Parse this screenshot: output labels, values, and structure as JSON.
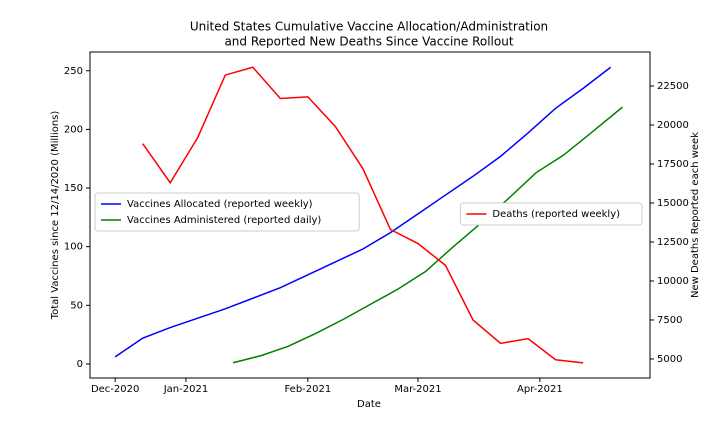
{
  "chart_data": {
    "type": "line",
    "title": [
      "United States Cumulative Vaccine Allocation/Administration",
      "and Reported New Deaths Since Vaccine Rollout"
    ],
    "xlabel": "Date",
    "ylabel": "Total Vaccines since 12/14/2020 (Millions)",
    "y2label": "New Deaths Reported each week",
    "xlim": [
      -6.4,
      136
    ],
    "xticks": [
      {
        "value": 0,
        "label": "Dec-2020"
      },
      {
        "value": 18,
        "label": "Jan-2021"
      },
      {
        "value": 49,
        "label": "Feb-2021"
      },
      {
        "value": 77,
        "label": "Mar-2021"
      },
      {
        "value": 108,
        "label": "Apr-2021"
      }
    ],
    "ylim": [
      -12,
      266
    ],
    "yticks": [
      0,
      50,
      100,
      150,
      200,
      250
    ],
    "y2lim": [
      3780,
      24680
    ],
    "y2ticks": [
      5000,
      7500,
      10000,
      12500,
      15000,
      17500,
      20000,
      22500
    ],
    "legend_loc": "center left",
    "legend2_loc": "center right",
    "series": [
      {
        "name": "Vaccines Allocated (reported weekly)",
        "color": "#0000ff",
        "axis": "y",
        "x": [
          0,
          7,
          14,
          21,
          28,
          35,
          42,
          49,
          56,
          63,
          70,
          77,
          84,
          91,
          98,
          105,
          112,
          119,
          126
        ],
        "values": [
          6,
          22,
          31,
          39,
          47,
          56,
          65,
          76,
          87,
          98,
          112,
          128,
          144,
          160,
          177,
          197,
          218,
          235,
          253
        ]
      },
      {
        "name": "Vaccines Administered (reported daily)",
        "color": "#008000",
        "axis": "y",
        "x": [
          30,
          37,
          44,
          51,
          58,
          65,
          72,
          79,
          86,
          93,
          100,
          107,
          114,
          121,
          129
        ],
        "values": [
          1,
          7,
          15,
          26,
          38,
          51,
          64,
          79,
          100,
          120,
          141,
          163,
          178,
          197,
          219
        ]
      },
      {
        "name": "Deaths (reported weekly)",
        "color": "#ff0000",
        "axis": "y2",
        "x": [
          7,
          14,
          21,
          28,
          35,
          42,
          49,
          56,
          63,
          70,
          77,
          84,
          91,
          98,
          105,
          112,
          119
        ],
        "values": [
          18800,
          16300,
          19200,
          23200,
          23700,
          21700,
          21800,
          19900,
          17200,
          13300,
          12400,
          11000,
          7500,
          6000,
          6300,
          4950,
          4750
        ]
      }
    ]
  }
}
